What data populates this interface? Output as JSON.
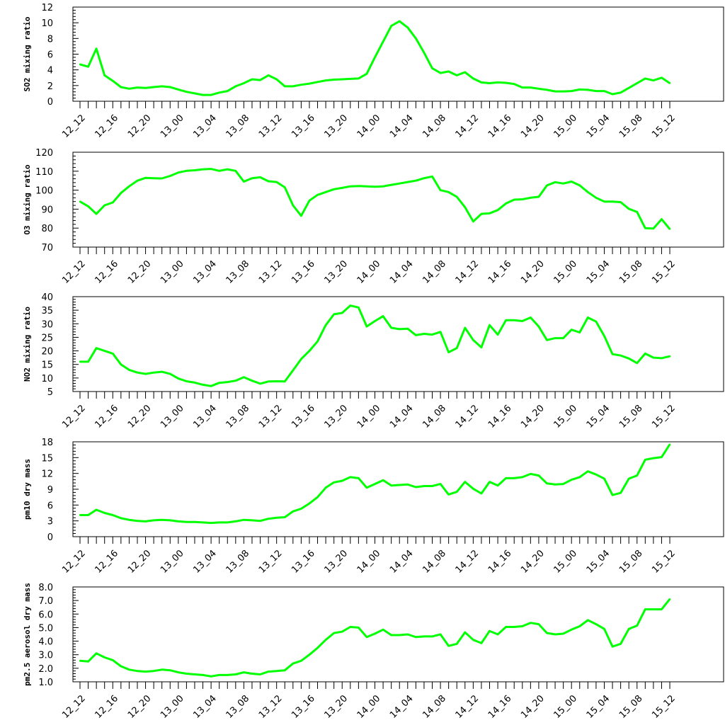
{
  "chart_data": [
    {
      "type": "line",
      "ylabel": "SO2 mixing ratio",
      "ylim": [
        0,
        12
      ],
      "yticks": [
        0,
        2,
        4,
        6,
        8,
        10,
        12
      ],
      "grid": false,
      "series_color": "#00ff00",
      "x": [
        0,
        1,
        2,
        3,
        4,
        5,
        6,
        7,
        8,
        9,
        10,
        11,
        12,
        13,
        14,
        15,
        16,
        17,
        18,
        19,
        20,
        21,
        22,
        23,
        24,
        25,
        26,
        27,
        28,
        29,
        30,
        31,
        32,
        33,
        34,
        35,
        36,
        37,
        38,
        39,
        40,
        41,
        42,
        43,
        44,
        45,
        46,
        47,
        48,
        49,
        50,
        51,
        52,
        53,
        54,
        55,
        56,
        57,
        58,
        59,
        60,
        61,
        62,
        63,
        64,
        65,
        66,
        67,
        68,
        69,
        70,
        71,
        72
      ],
      "values": [
        4.7,
        4.4,
        6.7,
        3.3,
        2.6,
        1.8,
        1.6,
        1.75,
        1.7,
        1.8,
        1.9,
        1.8,
        1.5,
        1.2,
        1.0,
        0.8,
        0.8,
        1.1,
        1.3,
        1.9,
        2.3,
        2.8,
        2.7,
        3.3,
        2.8,
        1.9,
        1.9,
        2.1,
        2.25,
        2.45,
        2.65,
        2.75,
        2.8,
        2.85,
        2.9,
        3.5,
        5.6,
        7.6,
        9.6,
        10.2,
        9.4,
        8.0,
        6.2,
        4.2,
        3.6,
        3.8,
        3.3,
        3.7,
        2.9,
        2.4,
        2.3,
        2.4,
        2.35,
        2.2,
        1.75,
        1.75,
        1.6,
        1.45,
        1.25,
        1.25,
        1.3,
        1.5,
        1.45,
        1.3,
        1.3,
        0.9,
        1.1,
        1.7,
        2.3,
        2.9,
        2.65,
        3.0,
        2.3
      ]
    },
    {
      "type": "line",
      "ylabel": "O3 mixing ratio",
      "ylim": [
        70,
        120
      ],
      "yticks": [
        70,
        80,
        90,
        100,
        110,
        120
      ],
      "grid": false,
      "series_color": "#00ff00",
      "x": [
        0,
        1,
        2,
        3,
        4,
        5,
        6,
        7,
        8,
        9,
        10,
        11,
        12,
        13,
        14,
        15,
        16,
        17,
        18,
        19,
        20,
        21,
        22,
        23,
        24,
        25,
        26,
        27,
        28,
        29,
        30,
        31,
        32,
        33,
        34,
        35,
        36,
        37,
        38,
        39,
        40,
        41,
        42,
        43,
        44,
        45,
        46,
        47,
        48,
        49,
        50,
        51,
        52,
        53,
        54,
        55,
        56,
        57,
        58,
        59,
        60,
        61,
        62,
        63,
        64,
        65,
        66,
        67,
        68,
        69,
        70,
        71,
        72
      ],
      "values": [
        94,
        91.5,
        87.5,
        92,
        93.5,
        98.5,
        102,
        105,
        106.5,
        106.3,
        106.2,
        107.5,
        109.3,
        110.2,
        110.5,
        111,
        111.2,
        110.2,
        111,
        110.2,
        104.5,
        106.3,
        106.8,
        104.7,
        104.3,
        101.5,
        92,
        86.5,
        94.5,
        97.5,
        99,
        100.5,
        101.2,
        102,
        102.2,
        102,
        101.8,
        102,
        102.8,
        103.5,
        104.3,
        105,
        106.3,
        107.2,
        100,
        99,
        96.5,
        91,
        83.5,
        87.5,
        87.8,
        89.5,
        93,
        95,
        95.2,
        96,
        96.5,
        102.5,
        104.2,
        103.5,
        104.5,
        102.5,
        99,
        96,
        94,
        94,
        93.7,
        90.2,
        88.5,
        80,
        79.8,
        84.7,
        79.5
      ]
    },
    {
      "type": "line",
      "ylabel": "NO2 mixing ratio",
      "ylim": [
        5,
        40
      ],
      "yticks": [
        5,
        10,
        15,
        20,
        25,
        30,
        35,
        40
      ],
      "grid": false,
      "series_color": "#00ff00",
      "x": [
        0,
        1,
        2,
        3,
        4,
        5,
        6,
        7,
        8,
        9,
        10,
        11,
        12,
        13,
        14,
        15,
        16,
        17,
        18,
        19,
        20,
        21,
        22,
        23,
        24,
        25,
        26,
        27,
        28,
        29,
        30,
        31,
        32,
        33,
        34,
        35,
        36,
        37,
        38,
        39,
        40,
        41,
        42,
        43,
        44,
        45,
        46,
        47,
        48,
        49,
        50,
        51,
        52,
        53,
        54,
        55,
        56,
        57,
        58,
        59,
        60,
        61,
        62,
        63,
        64,
        65,
        66,
        67,
        68,
        69,
        70,
        71,
        72
      ],
      "values": [
        16,
        16,
        21,
        20,
        19,
        15,
        13,
        12,
        11.5,
        12,
        12.3,
        11.5,
        9.8,
        8.8,
        8.3,
        7.5,
        7,
        8.2,
        8.5,
        9,
        10.3,
        9,
        7.9,
        8.7,
        8.8,
        8.7,
        12.8,
        17,
        20,
        23.5,
        29.5,
        33.5,
        34,
        36.7,
        36,
        29,
        31,
        32.8,
        28.5,
        28,
        28.2,
        25.8,
        26.3,
        26,
        27,
        19.5,
        21,
        28.5,
        24,
        21.3,
        29.5,
        26,
        31.3,
        31.3,
        31,
        32.3,
        29,
        24,
        24.7,
        24.7,
        27.8,
        26.8,
        32.3,
        30.8,
        25.5,
        18.8,
        18.3,
        17.2,
        15.5,
        19,
        17.5,
        17.3,
        18
      ]
    },
    {
      "type": "line",
      "ylabel": "pm10 dry mass",
      "ylim": [
        0,
        18
      ],
      "yticks": [
        0,
        3,
        6,
        9,
        12,
        15,
        18
      ],
      "grid": false,
      "series_color": "#00ff00",
      "x": [
        0,
        1,
        2,
        3,
        4,
        5,
        6,
        7,
        8,
        9,
        10,
        11,
        12,
        13,
        14,
        15,
        16,
        17,
        18,
        19,
        20,
        21,
        22,
        23,
        24,
        25,
        26,
        27,
        28,
        29,
        30,
        31,
        32,
        33,
        34,
        35,
        36,
        37,
        38,
        39,
        40,
        41,
        42,
        43,
        44,
        45,
        46,
        47,
        48,
        49,
        50,
        51,
        52,
        53,
        54,
        55,
        56,
        57,
        58,
        59,
        60,
        61,
        62,
        63,
        64,
        65,
        66,
        67,
        68,
        69,
        70,
        71,
        72
      ],
      "values": [
        4.1,
        4.1,
        5.1,
        4.5,
        4.1,
        3.5,
        3.2,
        3.0,
        2.9,
        3.1,
        3.2,
        3.1,
        2.9,
        2.8,
        2.8,
        2.7,
        2.6,
        2.7,
        2.7,
        2.9,
        3.2,
        3.1,
        3.0,
        3.4,
        3.6,
        3.7,
        4.8,
        5.3,
        6.3,
        7.5,
        9.3,
        10.3,
        10.6,
        11.3,
        11.1,
        9.3,
        10.0,
        10.7,
        9.7,
        9.8,
        9.9,
        9.4,
        9.6,
        9.6,
        10.0,
        8.0,
        8.5,
        10.4,
        9.1,
        8.2,
        10.4,
        9.7,
        11.1,
        11.1,
        11.3,
        11.9,
        11.6,
        10.1,
        9.9,
        10.0,
        10.8,
        11.3,
        12.4,
        11.8,
        11.0,
        7.9,
        8.3,
        11.0,
        11.6,
        14.6,
        14.9,
        15.1,
        17.5
      ]
    },
    {
      "type": "line",
      "ylabel": "pm2.5 aerosol dry mass",
      "ylim": [
        1.0,
        8.0
      ],
      "yticks": [
        1.0,
        2.0,
        3.0,
        4.0,
        5.0,
        6.0,
        7.0,
        8.0
      ],
      "yticklabels": [
        "1.0",
        "2.0",
        "3.0",
        "4.0",
        "5.0",
        "6.0",
        "7.0",
        "8.0"
      ],
      "grid": false,
      "series_color": "#00ff00",
      "x": [
        0,
        1,
        2,
        3,
        4,
        5,
        6,
        7,
        8,
        9,
        10,
        11,
        12,
        13,
        14,
        15,
        16,
        17,
        18,
        19,
        20,
        21,
        22,
        23,
        24,
        25,
        26,
        27,
        28,
        29,
        30,
        31,
        32,
        33,
        34,
        35,
        36,
        37,
        38,
        39,
        40,
        41,
        42,
        43,
        44,
        45,
        46,
        47,
        48,
        49,
        50,
        51,
        52,
        53,
        54,
        55,
        56,
        57,
        58,
        59,
        60,
        61,
        62,
        63,
        64,
        65,
        66,
        67,
        68,
        69,
        70,
        71,
        72
      ],
      "values": [
        2.55,
        2.5,
        3.1,
        2.8,
        2.6,
        2.15,
        1.9,
        1.8,
        1.75,
        1.8,
        1.9,
        1.85,
        1.7,
        1.6,
        1.55,
        1.5,
        1.4,
        1.5,
        1.5,
        1.55,
        1.7,
        1.6,
        1.55,
        1.75,
        1.8,
        1.85,
        2.35,
        2.55,
        3.0,
        3.5,
        4.1,
        4.6,
        4.7,
        5.05,
        5.0,
        4.3,
        4.55,
        4.85,
        4.45,
        4.45,
        4.5,
        4.3,
        4.35,
        4.35,
        4.5,
        3.65,
        3.8,
        4.65,
        4.1,
        3.85,
        4.75,
        4.5,
        5.05,
        5.05,
        5.1,
        5.35,
        5.25,
        4.6,
        4.5,
        4.55,
        4.85,
        5.1,
        5.55,
        5.25,
        4.9,
        3.6,
        3.8,
        4.9,
        5.15,
        6.35,
        6.35,
        6.35,
        7.1
      ]
    }
  ],
  "x_tick_labels": [
    "12_12",
    "12_16",
    "12_20",
    "13_00",
    "13_04",
    "13_08",
    "13_12",
    "13_16",
    "13_20",
    "14_00",
    "14_04",
    "14_08",
    "14_12",
    "14_16",
    "14_20",
    "15_00",
    "15_04",
    "15_08",
    "15_12"
  ],
  "x_tick_label_positions": [
    0,
    4,
    8,
    12,
    16,
    20,
    24,
    28,
    32,
    36,
    40,
    44,
    48,
    52,
    56,
    60,
    64,
    68,
    72
  ],
  "x_minor_tick_count": 73
}
